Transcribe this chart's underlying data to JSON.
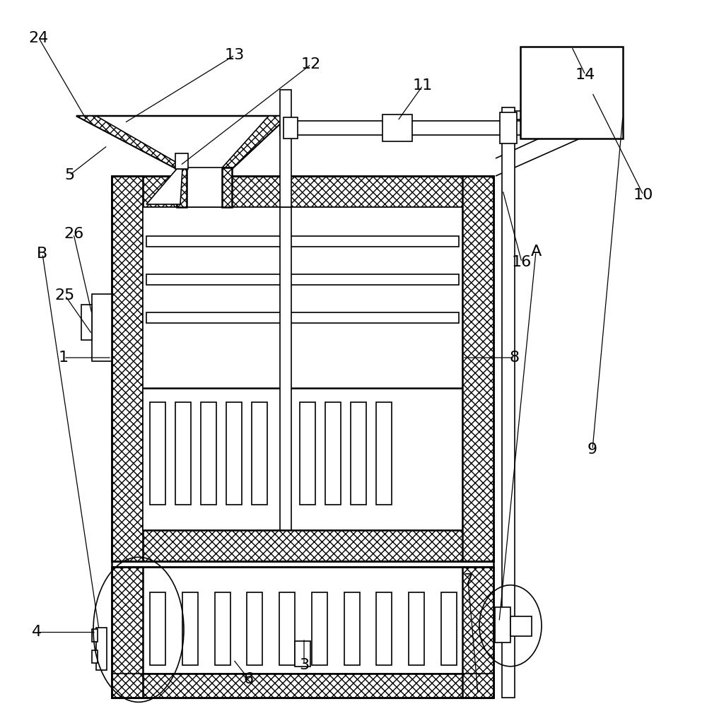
{
  "bg_color": "#ffffff",
  "line_color": "#000000",
  "figsize": [
    10.0,
    9.96
  ],
  "dpi": 100,
  "hatch_pattern": "xxx"
}
